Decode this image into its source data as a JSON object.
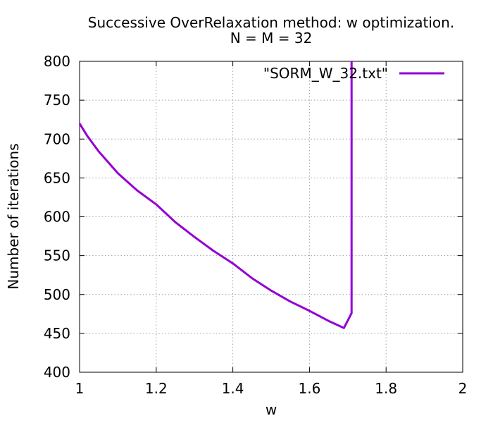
{
  "chart_data": {
    "type": "line",
    "title": "Successive OverRelaxation method: w optimization.",
    "subtitle": "N = M = 32",
    "xlabel": "w",
    "ylabel": "Number of iterations",
    "xlim": [
      1,
      2
    ],
    "ylim": [
      400,
      800
    ],
    "x_ticks": [
      "1",
      "1.2",
      "1.4",
      "1.6",
      "1.8",
      "2"
    ],
    "y_ticks": [
      "400",
      "450",
      "500",
      "550",
      "600",
      "650",
      "700",
      "750",
      "800"
    ],
    "grid": true,
    "legend_position": "top-right",
    "series": [
      {
        "name": "\"SORM_W_32.txt\"",
        "color": "#9400d3",
        "x": [
          1.0,
          1.02,
          1.05,
          1.1,
          1.15,
          1.2,
          1.25,
          1.3,
          1.35,
          1.4,
          1.45,
          1.5,
          1.55,
          1.6,
          1.65,
          1.69,
          1.71,
          1.71
        ],
        "y": [
          720,
          704,
          684,
          656,
          634,
          616,
          593,
          574,
          556,
          540,
          521,
          505,
          491,
          479,
          466,
          457,
          476,
          800
        ]
      }
    ]
  }
}
